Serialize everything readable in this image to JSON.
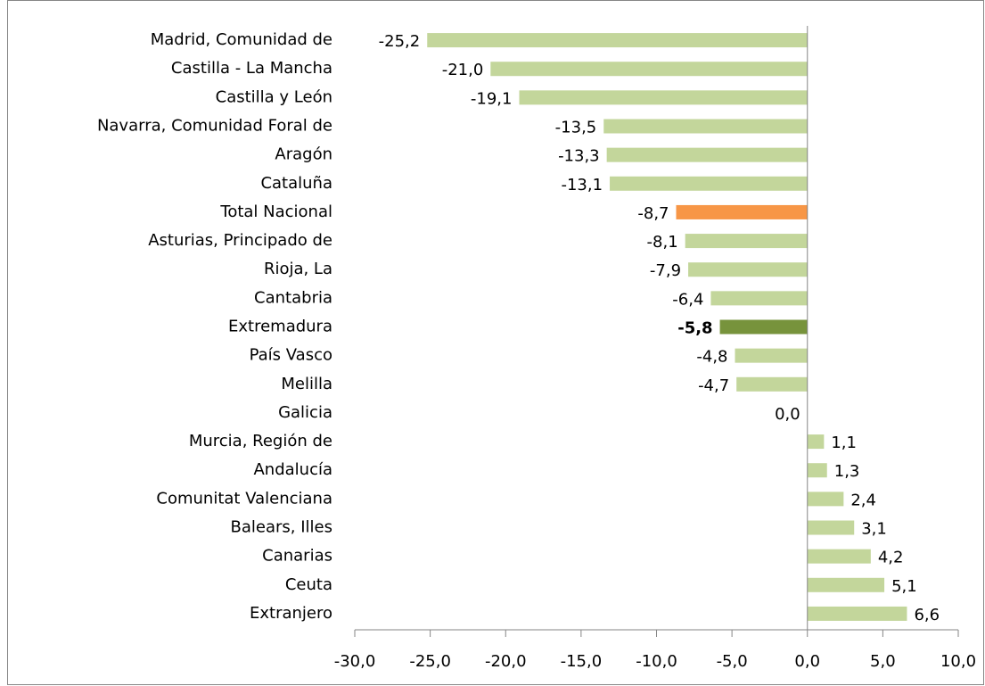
{
  "chart_data": {
    "type": "hbar",
    "categories": [
      "Madrid, Comunidad de",
      "Castilla - La Mancha",
      "Castilla y León",
      "Navarra, Comunidad Foral de",
      "Aragón",
      "Cataluña",
      "Total Nacional",
      "Asturias, Principado de",
      "Rioja, La",
      "Cantabria",
      "Extremadura",
      "País Vasco",
      "Melilla",
      "Galicia",
      "Murcia, Región de",
      "Andalucía",
      "Comunitat Valenciana",
      "Balears, Illes",
      "Canarias",
      "Ceuta",
      "Extranjero"
    ],
    "values": [
      -25.2,
      -21.0,
      -19.1,
      -13.5,
      -13.3,
      -13.1,
      -8.7,
      -8.1,
      -7.9,
      -6.4,
      -5.8,
      -4.8,
      -4.7,
      0.0,
      1.1,
      1.3,
      2.4,
      3.1,
      4.2,
      5.1,
      6.6
    ],
    "value_labels": [
      "-25,2",
      "-21,0",
      "-19,1",
      "-13,5",
      "-13,3",
      "-13,1",
      "-8,7",
      "-8,1",
      "-7,9",
      "-6,4",
      "-5,8",
      "-4,8",
      "-4,7",
      "0,0",
      "1,1",
      "1,3",
      "2,4",
      "3,1",
      "4,2",
      "5,1",
      "6,6"
    ],
    "colors": [
      "#c3d69b",
      "#c3d69b",
      "#c3d69b",
      "#c3d69b",
      "#c3d69b",
      "#c3d69b",
      "#f79646",
      "#c3d69b",
      "#c3d69b",
      "#c3d69b",
      "#77933c",
      "#c3d69b",
      "#c3d69b",
      "#c3d69b",
      "#c3d69b",
      "#c3d69b",
      "#c3d69b",
      "#c3d69b",
      "#c3d69b",
      "#c3d69b",
      "#c3d69b"
    ],
    "label_bold": [
      false,
      false,
      false,
      false,
      false,
      false,
      false,
      false,
      false,
      false,
      true,
      false,
      false,
      false,
      false,
      false,
      false,
      false,
      false,
      false,
      false
    ],
    "xlim": [
      -30,
      10
    ],
    "xticks": [
      {
        "value": -30,
        "label": "-30,0"
      },
      {
        "value": -25,
        "label": "-25,0"
      },
      {
        "value": -20,
        "label": "-20,0"
      },
      {
        "value": -15,
        "label": "-15,0"
      },
      {
        "value": -10,
        "label": "-10,0"
      },
      {
        "value": -5,
        "label": "-5,0"
      },
      {
        "value": 0,
        "label": "0,0"
      },
      {
        "value": 5,
        "label": "5,0"
      },
      {
        "value": 10,
        "label": "10,0"
      }
    ],
    "grid": false
  }
}
